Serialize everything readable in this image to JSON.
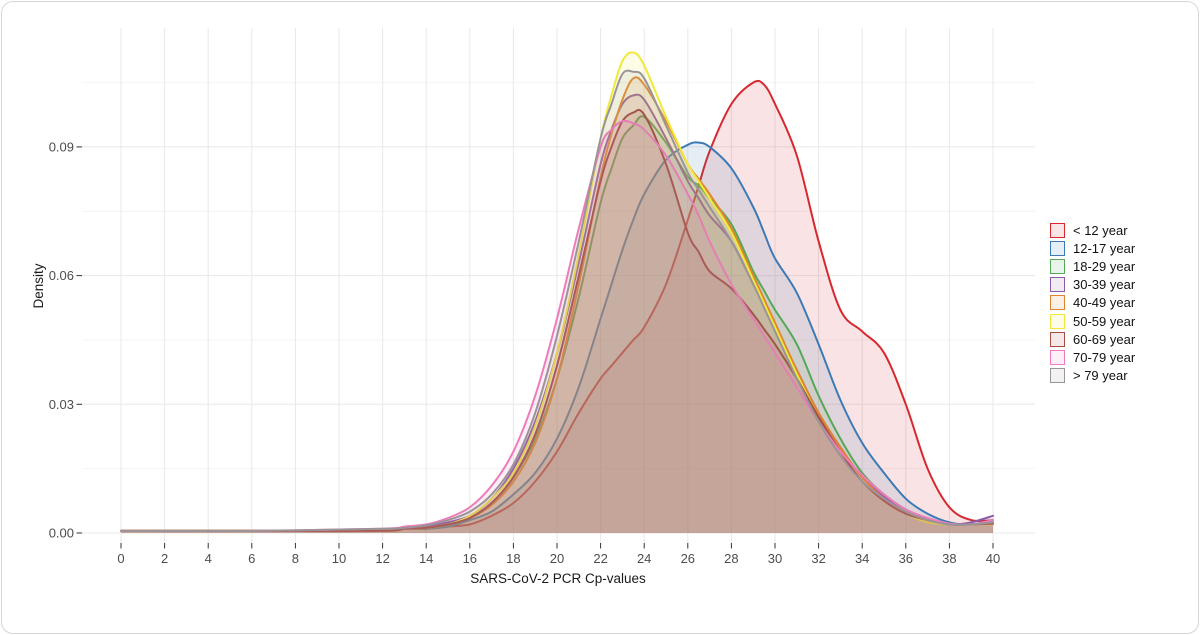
{
  "chart_data": {
    "type": "area",
    "title": "",
    "xlabel": "SARS-CoV-2 PCR Cp-values",
    "ylabel": "Density",
    "xlim": [
      0,
      40
    ],
    "ylim": [
      0,
      0.115
    ],
    "x_ticks": [
      0,
      2,
      4,
      6,
      8,
      10,
      12,
      14,
      16,
      18,
      20,
      22,
      24,
      26,
      28,
      30,
      32,
      34,
      36,
      38,
      40
    ],
    "y_ticks": [
      0,
      0.03,
      0.06,
      0.09
    ],
    "y_tick_labels": [
      "0.00",
      "0.03",
      "0.06",
      "0.09"
    ],
    "y_minor_gridlines": [
      0.015,
      0.045,
      0.075,
      0.105
    ],
    "grid": "light-grey-on-white",
    "legend_position": "right",
    "fill_opacity": 0.13,
    "stroke_width": 2,
    "x": [
      0,
      6,
      12,
      13,
      14,
      15,
      16,
      17,
      18,
      19,
      20,
      21,
      22,
      22.5,
      23,
      23.5,
      24,
      25,
      26,
      26.5,
      27,
      28,
      29,
      29.5,
      30,
      31,
      32,
      33,
      34,
      35,
      36,
      37,
      38,
      39,
      40
    ],
    "series": [
      {
        "name": "< 12 year",
        "color": "#d7282e",
        "values": [
          0.0005,
          0.0005,
          0.0005,
          0.001,
          0.001,
          0.0015,
          0.002,
          0.004,
          0.007,
          0.012,
          0.019,
          0.028,
          0.036,
          0.039,
          0.042,
          0.045,
          0.048,
          0.058,
          0.073,
          0.081,
          0.089,
          0.1,
          0.105,
          0.1045,
          0.1,
          0.088,
          0.068,
          0.052,
          0.047,
          0.042,
          0.03,
          0.015,
          0.006,
          0.003,
          0.003
        ]
      },
      {
        "name": "12-17 year",
        "color": "#3d7ab5",
        "values": [
          0.0005,
          0.0005,
          0.0005,
          0.001,
          0.001,
          0.0015,
          0.003,
          0.005,
          0.009,
          0.014,
          0.022,
          0.034,
          0.05,
          0.058,
          0.066,
          0.073,
          0.079,
          0.087,
          0.0905,
          0.091,
          0.09,
          0.085,
          0.076,
          0.07,
          0.064,
          0.056,
          0.044,
          0.031,
          0.021,
          0.014,
          0.008,
          0.0045,
          0.0025,
          0.002,
          0.003
        ]
      },
      {
        "name": "18-29 year",
        "color": "#55a858",
        "values": [
          0.0005,
          0.0005,
          0.0005,
          0.001,
          0.0012,
          0.002,
          0.0035,
          0.007,
          0.013,
          0.022,
          0.036,
          0.055,
          0.077,
          0.085,
          0.092,
          0.095,
          0.097,
          0.091,
          0.083,
          0.081,
          0.078,
          0.072,
          0.061,
          0.0565,
          0.052,
          0.044,
          0.032,
          0.022,
          0.014,
          0.009,
          0.0055,
          0.003,
          0.002,
          0.002,
          0.0025
        ]
      },
      {
        "name": "30-39 year",
        "color": "#8a5ba6",
        "values": [
          0.0005,
          0.0005,
          0.0005,
          0.0012,
          0.0015,
          0.0025,
          0.004,
          0.008,
          0.015,
          0.026,
          0.042,
          0.063,
          0.086,
          0.094,
          0.1,
          0.102,
          0.101,
          0.092,
          0.082,
          0.078,
          0.074,
          0.068,
          0.058,
          0.053,
          0.048,
          0.038,
          0.028,
          0.02,
          0.013,
          0.0085,
          0.005,
          0.003,
          0.002,
          0.0025,
          0.004
        ]
      },
      {
        "name": "40-49 year",
        "color": "#e1842f",
        "values": [
          0.0005,
          0.0005,
          0.0005,
          0.001,
          0.0012,
          0.002,
          0.0035,
          0.0065,
          0.012,
          0.021,
          0.036,
          0.058,
          0.083,
          0.093,
          0.101,
          0.106,
          0.1045,
          0.096,
          0.086,
          0.0825,
          0.079,
          0.071,
          0.06,
          0.0545,
          0.049,
          0.038,
          0.028,
          0.02,
          0.013,
          0.008,
          0.005,
          0.003,
          0.002,
          0.002,
          0.0025
        ]
      },
      {
        "name": "50-59 year",
        "color": "#efea3a",
        "values": [
          0.0005,
          0.0005,
          0.0005,
          0.001,
          0.0012,
          0.002,
          0.004,
          0.008,
          0.014,
          0.025,
          0.042,
          0.065,
          0.092,
          0.102,
          0.11,
          0.112,
          0.109,
          0.097,
          0.086,
          0.082,
          0.078,
          0.07,
          0.059,
          0.0535,
          0.048,
          0.037,
          0.027,
          0.019,
          0.012,
          0.0075,
          0.0045,
          0.0025,
          0.002,
          0.002,
          0.002
        ]
      },
      {
        "name": "60-69 year",
        "color": "#a34e3e",
        "values": [
          0.0005,
          0.0005,
          0.0005,
          0.001,
          0.0012,
          0.002,
          0.0035,
          0.007,
          0.013,
          0.023,
          0.039,
          0.06,
          0.082,
          0.09,
          0.096,
          0.098,
          0.0975,
          0.086,
          0.07,
          0.0655,
          0.061,
          0.057,
          0.051,
          0.0475,
          0.044,
          0.036,
          0.027,
          0.019,
          0.012,
          0.0075,
          0.0045,
          0.003,
          0.002,
          0.002,
          0.0022
        ]
      },
      {
        "name": "70-79 year",
        "color": "#ef7cba",
        "values": [
          0.0005,
          0.0005,
          0.001,
          0.0015,
          0.002,
          0.0035,
          0.006,
          0.011,
          0.019,
          0.032,
          0.05,
          0.071,
          0.09,
          0.094,
          0.096,
          0.0955,
          0.094,
          0.088,
          0.079,
          0.074,
          0.068,
          0.058,
          0.05,
          0.046,
          0.042,
          0.034,
          0.026,
          0.019,
          0.0135,
          0.009,
          0.0055,
          0.0035,
          0.0022,
          0.002,
          0.003
        ]
      },
      {
        "name": "> 79 year",
        "color": "#9a9499",
        "values": [
          0.0005,
          0.0005,
          0.001,
          0.0012,
          0.0018,
          0.003,
          0.005,
          0.009,
          0.016,
          0.028,
          0.046,
          0.068,
          0.092,
          0.1,
          0.107,
          0.1075,
          0.106,
          0.095,
          0.084,
          0.08,
          0.076,
          0.068,
          0.058,
          0.0525,
          0.047,
          0.036,
          0.026,
          0.018,
          0.012,
          0.008,
          0.005,
          0.003,
          0.002,
          0.002,
          0.0025
        ]
      }
    ]
  }
}
